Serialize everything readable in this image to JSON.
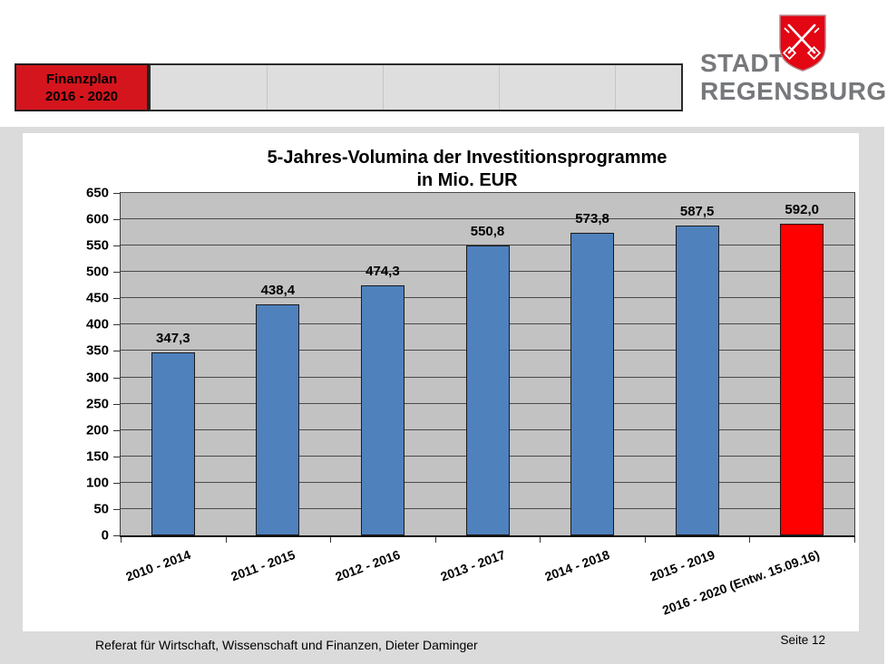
{
  "header": {
    "badge": {
      "line1": "Finanzplan",
      "line2": "2016 - 2020",
      "bg": "#D4151D"
    },
    "nav_bar": {
      "bg": "#DEDEDE",
      "segments": 5
    },
    "logo": {
      "line1": "STADT",
      "line2": "REGENSBURG",
      "text_color": "#77787B",
      "shield_color": "#E30613"
    }
  },
  "chart_data": {
    "type": "bar",
    "title": "5-Jahres-Volumina der Investitionsprogramme",
    "subtitle": "in Mio. EUR",
    "categories": [
      "2010 - 2014",
      "2011 - 2015",
      "2012 - 2016",
      "2013 - 2017",
      "2014 - 2018",
      "2015 - 2019",
      "2016 - 2020 (Entw. 15.09.16)"
    ],
    "values": [
      347.3,
      438.4,
      474.3,
      550.8,
      573.8,
      587.5,
      592.0
    ],
    "value_labels": [
      "347,3",
      "438,4",
      "474,3",
      "550,8",
      "573,8",
      "587,5",
      "592,0"
    ],
    "bar_colors": [
      "#4F81BD",
      "#4F81BD",
      "#4F81BD",
      "#4F81BD",
      "#4F81BD",
      "#4F81BD",
      "#FF0000"
    ],
    "xlabel": "",
    "ylabel": "",
    "ylim": [
      0,
      650
    ],
    "ytick_step": 50,
    "grid": true,
    "legend": false,
    "plot_bg": "#C2C2C2",
    "x_label_rotation_deg": -20
  },
  "footer": {
    "left": "Referat für Wirtschaft, Wissenschaft und Finanzen, Dieter Daminger",
    "right": "Seite 12"
  }
}
